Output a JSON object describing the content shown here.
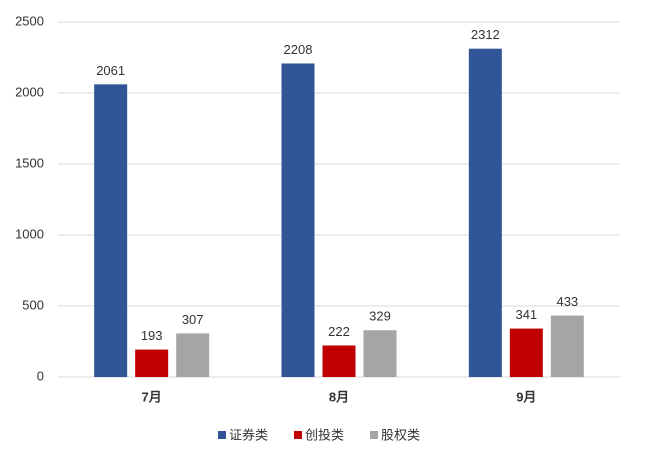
{
  "chart_data": {
    "type": "bar",
    "categories": [
      "7月",
      "8月",
      "9月"
    ],
    "series": [
      {
        "name": "证券类",
        "color": "#2f5597",
        "values": [
          2061,
          2208,
          2312
        ]
      },
      {
        "name": "创投类",
        "color": "#c00000",
        "values": [
          193,
          222,
          341
        ]
      },
      {
        "name": "股权类",
        "color": "#a5a5a5",
        "values": [
          307,
          329,
          433
        ]
      }
    ],
    "ylim": [
      0,
      2500
    ],
    "yticks": [
      0,
      500,
      1000,
      1500,
      2000,
      2500
    ],
    "grid": true,
    "legend": "bottom"
  }
}
